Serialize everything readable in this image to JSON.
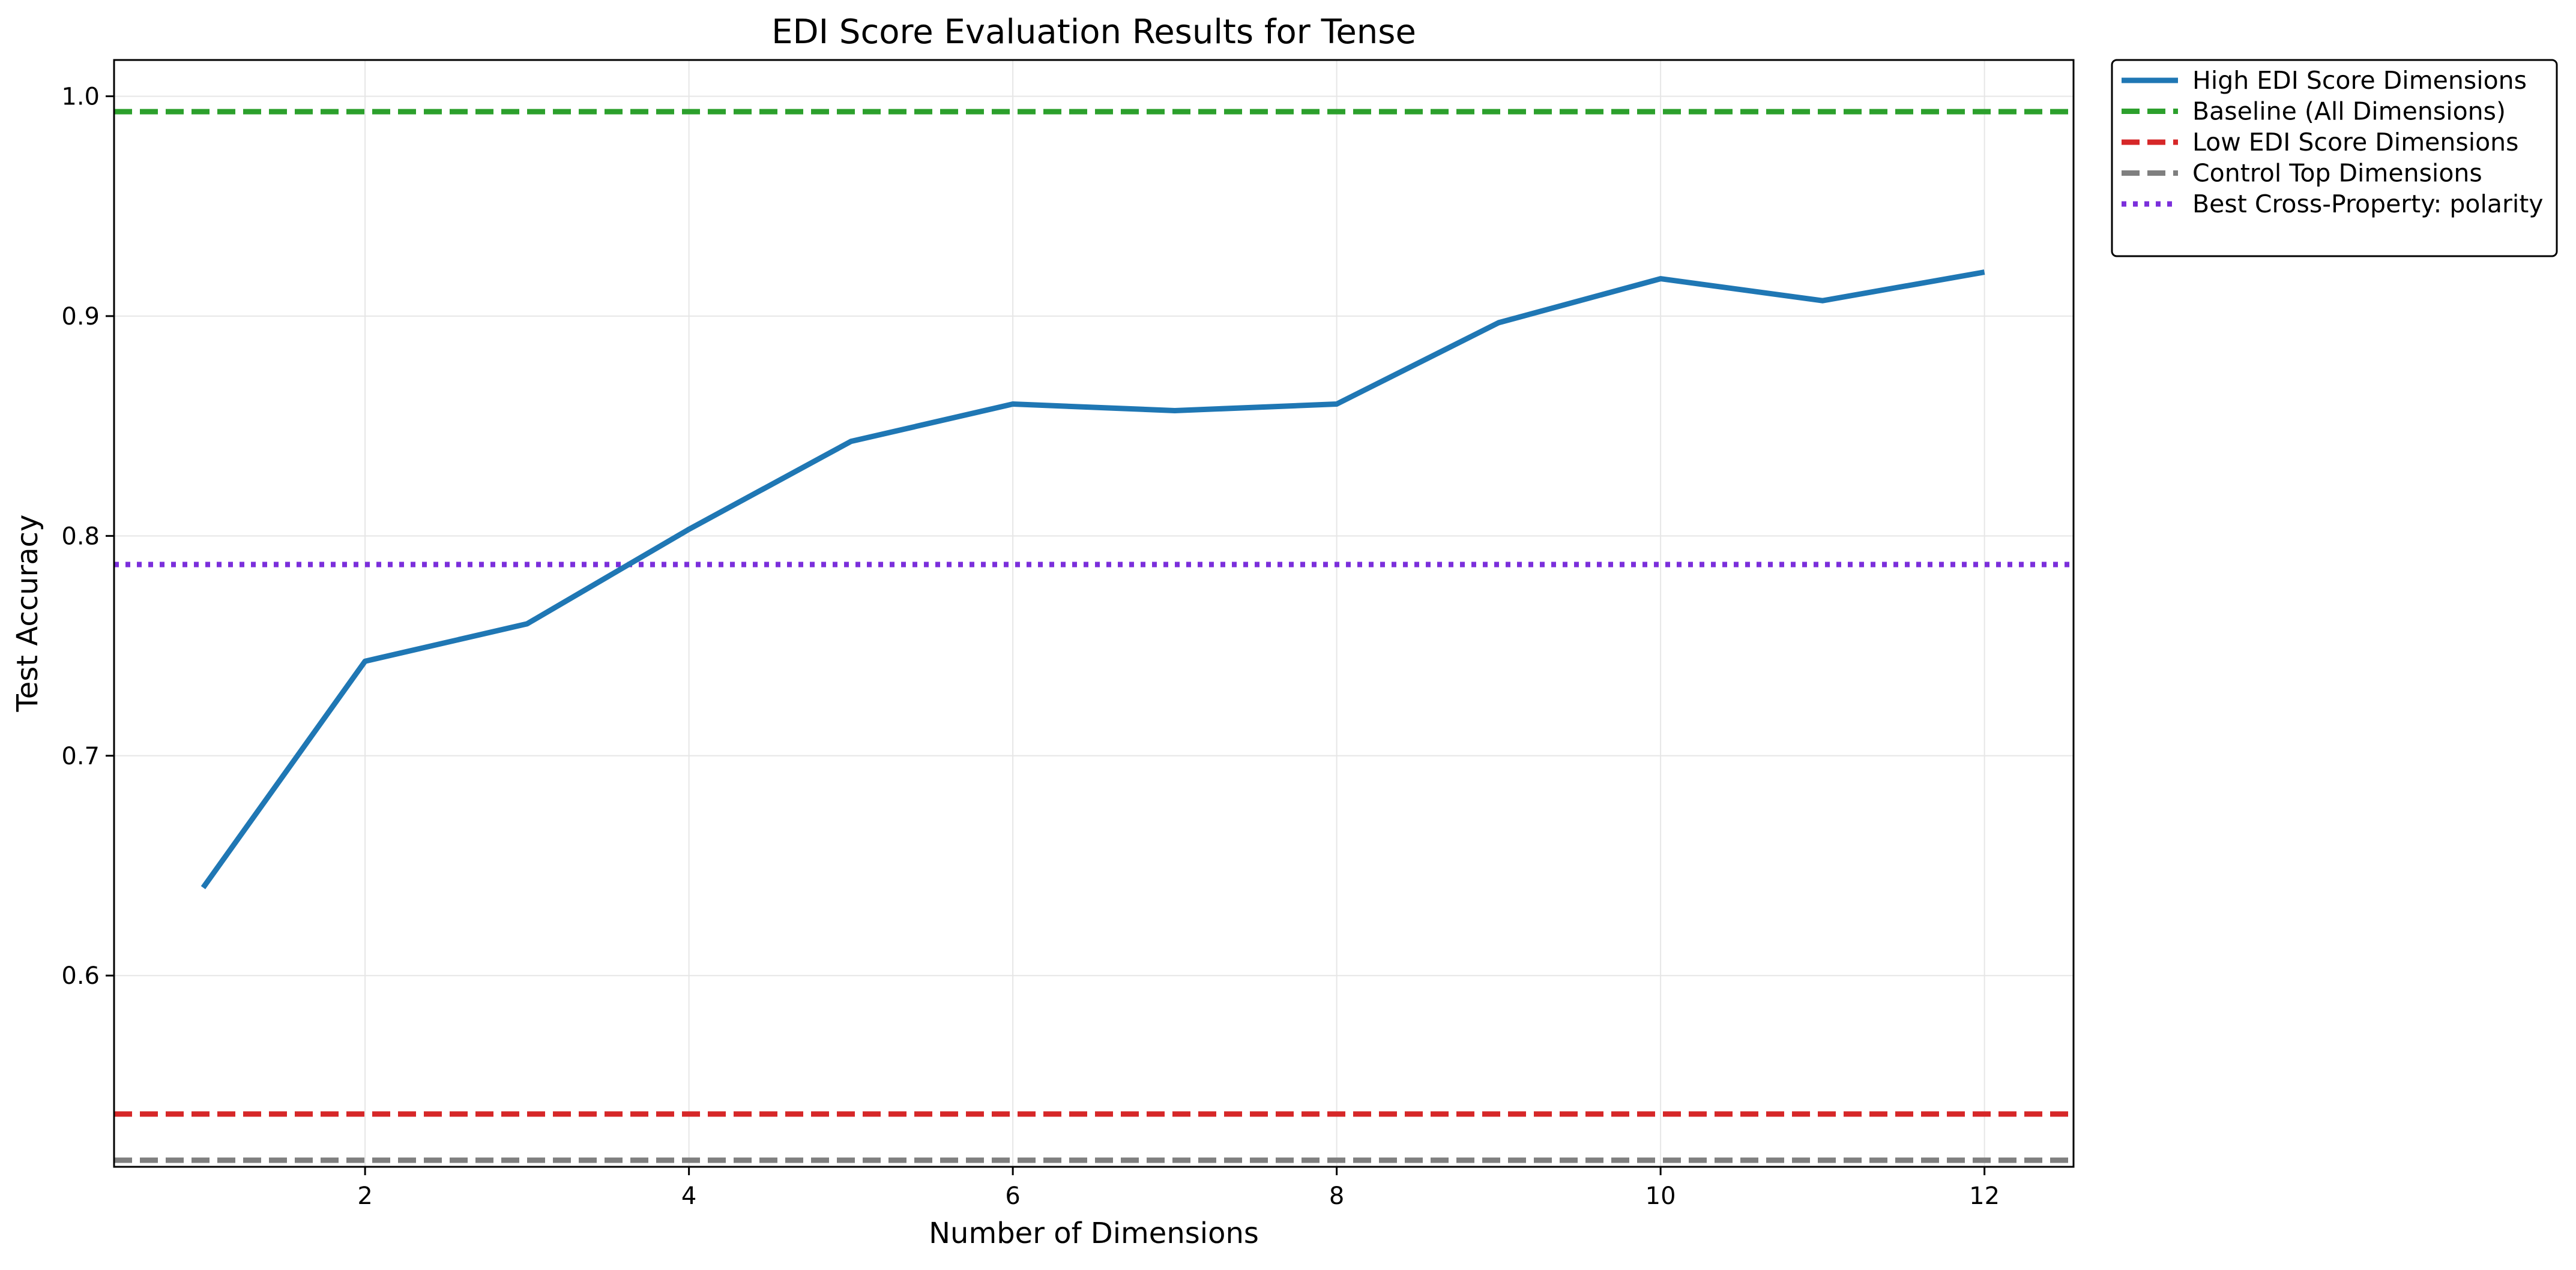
{
  "chart_data": {
    "type": "line",
    "title": "EDI Score Evaluation Results for Tense",
    "xlabel": "Number of Dimensions",
    "ylabel": "Test Accuracy",
    "xlim": [
      0.45,
      12.55
    ],
    "ylim": [
      0.513,
      1.0165
    ],
    "xticks": [
      2,
      4,
      6,
      8,
      10,
      12
    ],
    "yticks": [
      0.6,
      0.7,
      0.8,
      0.9,
      1.0
    ],
    "ytick_labels": [
      "0.6",
      "0.7",
      "0.8",
      "0.9",
      "1.0"
    ],
    "grid": true,
    "legend_position": "outside-top-right",
    "series": [
      {
        "name": "High EDI Score Dimensions",
        "kind": "line",
        "style": "solid",
        "color": "#1f77b4",
        "x": [
          1,
          2,
          3,
          4,
          5,
          6,
          7,
          8,
          9,
          10,
          11,
          12
        ],
        "values": [
          0.64,
          0.743,
          0.76,
          0.803,
          0.843,
          0.86,
          0.857,
          0.86,
          0.897,
          0.917,
          0.907,
          0.92
        ]
      },
      {
        "name": "Baseline (All Dimensions)",
        "kind": "hline",
        "style": "dashed",
        "color": "#2ca02c",
        "value": 0.993
      },
      {
        "name": "Low EDI Score Dimensions",
        "kind": "hline",
        "style": "dashed",
        "color": "#d62728",
        "value": 0.537
      },
      {
        "name": "Control Top Dimensions",
        "kind": "hline",
        "style": "dashed",
        "color": "#7f7f7f",
        "value": 0.516
      },
      {
        "name": "Best Cross-Property: polarity",
        "kind": "hline",
        "style": "dotted",
        "color": "#7b2fdb",
        "value": 0.787
      }
    ]
  }
}
